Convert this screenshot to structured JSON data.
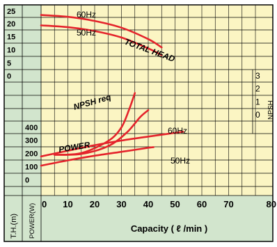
{
  "chart_data": {
    "type": "line",
    "xlabel": "Capacity ( ℓ /min )",
    "x_ticks": [
      "0",
      "10",
      "20",
      "30",
      "40",
      "50",
      "60",
      "70",
      "80"
    ],
    "xlim": [
      0,
      80
    ],
    "head_axis": {
      "label": "T.H.(m)",
      "ticks": [
        "25",
        "20",
        "15",
        "10",
        "5",
        "0"
      ]
    },
    "power_axis": {
      "label": "POWER(W)",
      "ticks": [
        "400",
        "300",
        "200",
        "100",
        "0"
      ]
    },
    "npsh_axis": {
      "label": "NPSH",
      "ticks": [
        "3",
        "2",
        "1",
        "0"
      ]
    },
    "curve_labels": {
      "total_head": "TOTAL HEAD",
      "npsh": "NPSH req",
      "power": "POWER",
      "head_60": "60Hz",
      "head_50": "50Hz",
      "power_60": "60Hz",
      "power_50": "50Hz"
    },
    "series": [
      {
        "name": "60Hz",
        "group": "total_head",
        "x": [
          0,
          10,
          20,
          30,
          40,
          45
        ],
        "y": [
          23.5,
          22.8,
          21.2,
          18.6,
          14.2,
          11.0
        ]
      },
      {
        "name": "50Hz",
        "group": "total_head",
        "x": [
          0,
          10,
          20,
          30,
          40,
          45
        ],
        "y": [
          19.5,
          18.8,
          17.3,
          14.8,
          10.6,
          8.0
        ]
      },
      {
        "name": "60Hz",
        "group": "npsh_req",
        "x": [
          5,
          15,
          25,
          30,
          33,
          35
        ],
        "y": [
          -1.6,
          -1.5,
          -0.8,
          0.0,
          1.1,
          2.0
        ]
      },
      {
        "name": "50Hz",
        "group": "npsh_req",
        "x": [
          5,
          15,
          25,
          32,
          37,
          40
        ],
        "y": [
          -1.6,
          -1.55,
          -1.1,
          -0.3,
          0.6,
          1.0
        ]
      },
      {
        "name": "60Hz",
        "group": "power",
        "x": [
          0,
          10,
          20,
          30,
          40,
          53
        ],
        "y": [
          180,
          223,
          265,
          300,
          330,
          367
        ]
      },
      {
        "name": "50Hz",
        "group": "power",
        "x": [
          0,
          10,
          20,
          30,
          40,
          42
        ],
        "y": [
          110,
          150,
          185,
          215,
          245,
          250
        ]
      }
    ]
  }
}
